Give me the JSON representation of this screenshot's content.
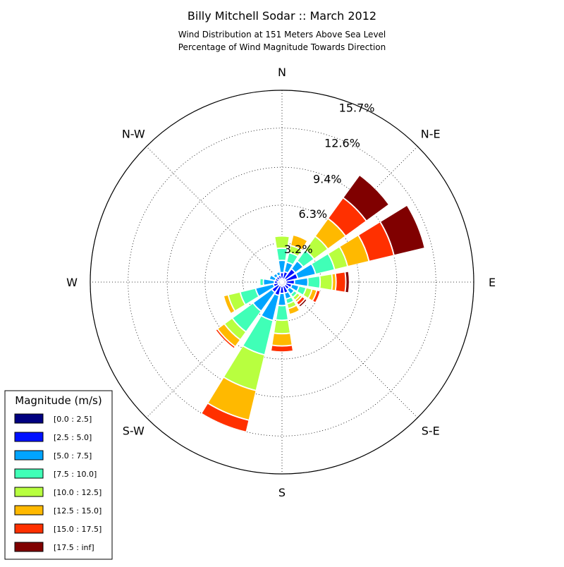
{
  "chart_data": {
    "type": "windrose",
    "title": "Billy Mitchell Sodar :: March 2012",
    "subtitle_lines": [
      "Wind Distribution at 151 Meters Above Sea Level",
      "Percentage of Wind Magnitude Towards Direction"
    ],
    "directions": [
      "N",
      "NNE",
      "NE",
      "ENE",
      "E",
      "ESE",
      "SE",
      "SSE",
      "S",
      "SSW",
      "SW",
      "WSW",
      "W",
      "WNW",
      "NW",
      "NNW"
    ],
    "direction_labels": [
      {
        "label": "N",
        "angle": 0
      },
      {
        "label": "N-E",
        "angle": 45
      },
      {
        "label": "E",
        "angle": 90
      },
      {
        "label": "S-E",
        "angle": 135
      },
      {
        "label": "S",
        "angle": 180
      },
      {
        "label": "S-W",
        "angle": 225
      },
      {
        "label": "W",
        "angle": 270
      },
      {
        "label": "N-W",
        "angle": 315
      }
    ],
    "radial_ticks": [
      3.2,
      6.3,
      9.4,
      12.6,
      15.7
    ],
    "radial_tick_labels": [
      "3.2%",
      "6.3%",
      "9.4%",
      "12.6%",
      "15.7%"
    ],
    "rmax": 15.7,
    "magnitude_bins": [
      "[0.0 : 2.5]",
      "[2.5 : 5.0]",
      "[5.0 : 7.5]",
      "[7.5 : 10.0]",
      "[10.0 : 12.5]",
      "[12.5 : 15.0]",
      "[15.0 : 17.5]",
      "[17.5 : inf]"
    ],
    "colors": [
      "#000080",
      "#0010ff",
      "#00a4ff",
      "#40ffb7",
      "#b8ff3f",
      "#ffb900",
      "#ff3000",
      "#800000"
    ],
    "legend_title": "Magnitude (m/s)",
    "series": [
      {
        "name": "[0.0 : 2.5]",
        "values": [
          0.25,
          0.25,
          0.3,
          0.3,
          0.3,
          0.3,
          0.3,
          0.3,
          0.3,
          0.3,
          0.3,
          0.3,
          0.3,
          0.25,
          0.25,
          0.25
        ]
      },
      {
        "name": "[2.5 : 5.0]",
        "values": [
          0.5,
          0.6,
          1.0,
          1.0,
          0.7,
          0.5,
          0.4,
          0.6,
          0.6,
          0.8,
          0.7,
          0.4,
          0.3,
          0.3,
          0.3,
          0.3
        ]
      },
      {
        "name": "[5.0 : 7.5]",
        "values": [
          1.0,
          0.8,
          0.8,
          1.5,
          1.1,
          0.6,
          0.5,
          0.5,
          1.0,
          2.1,
          1.9,
          1.5,
          0.9,
          0.5,
          0.3,
          0.3
        ]
      },
      {
        "name": "[7.5 : 10.0]",
        "values": [
          1.0,
          0.8,
          1.1,
          1.6,
          1.0,
          0.6,
          0.3,
          0.4,
          1.2,
          2.9,
          2.1,
          1.3,
          0.3,
          0.0,
          0.0,
          0.1
        ]
      },
      {
        "name": "[10.0 : 12.5]",
        "values": [
          1.0,
          0.6,
          1.4,
          1.1,
          1.0,
          0.5,
          0.3,
          0.4,
          1.1,
          3.0,
          0.8,
          1.0,
          0.1,
          0.0,
          0.0,
          0.1
        ]
      },
      {
        "name": "[12.5 : 15.0]",
        "values": [
          0.1,
          0.9,
          1.8,
          1.8,
          0.3,
          0.4,
          0.2,
          0.5,
          1.0,
          2.5,
          0.7,
          0.4,
          0.0,
          0.0,
          0.1,
          0.1
        ]
      },
      {
        "name": "[15.0 : 17.5]",
        "values": [
          0.0,
          0.0,
          2.1,
          2.1,
          0.8,
          0.3,
          0.3,
          0.1,
          0.5,
          1.0,
          0.2,
          0.1,
          0.0,
          0.0,
          0.0,
          0.0
        ]
      },
      {
        "name": "[17.5 : inf]",
        "values": [
          0.0,
          0.0,
          2.3,
          2.6,
          0.3,
          0.1,
          0.2,
          0.0,
          0.0,
          0.0,
          0.0,
          0.0,
          0.0,
          0.0,
          0.0,
          0.0
        ]
      }
    ],
    "grid": true,
    "legend_position": "bottom-left"
  }
}
